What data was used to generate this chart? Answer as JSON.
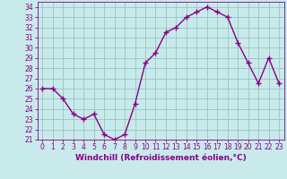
{
  "x": [
    0,
    1,
    2,
    3,
    4,
    5,
    6,
    7,
    8,
    9,
    10,
    11,
    12,
    13,
    14,
    15,
    16,
    17,
    18,
    19,
    20,
    21,
    22,
    23
  ],
  "y": [
    26,
    26,
    25,
    23.5,
    23,
    23.5,
    21.5,
    21,
    21.5,
    24.5,
    28.5,
    29.5,
    31.5,
    32,
    33,
    33.5,
    34,
    33.5,
    33,
    30.5,
    28.5,
    26.5,
    29,
    26.5
  ],
  "line_color": "#880088",
  "marker": "+",
  "marker_size": 4,
  "background_color": "#c8eaea",
  "grid_color": "#a0c8c8",
  "xlabel": "Windchill (Refroidissement éolien,°C)",
  "ylim": [
    21,
    34.5
  ],
  "xlim": [
    -0.5,
    23.5
  ],
  "yticks": [
    21,
    22,
    23,
    24,
    25,
    26,
    27,
    28,
    29,
    30,
    31,
    32,
    33,
    34
  ],
  "xticks": [
    0,
    1,
    2,
    3,
    4,
    5,
    6,
    7,
    8,
    9,
    10,
    11,
    12,
    13,
    14,
    15,
    16,
    17,
    18,
    19,
    20,
    21,
    22,
    23
  ],
  "tick_color": "#880088",
  "tick_fontsize": 5.5,
  "xlabel_fontsize": 6.5,
  "line_width": 1.0
}
